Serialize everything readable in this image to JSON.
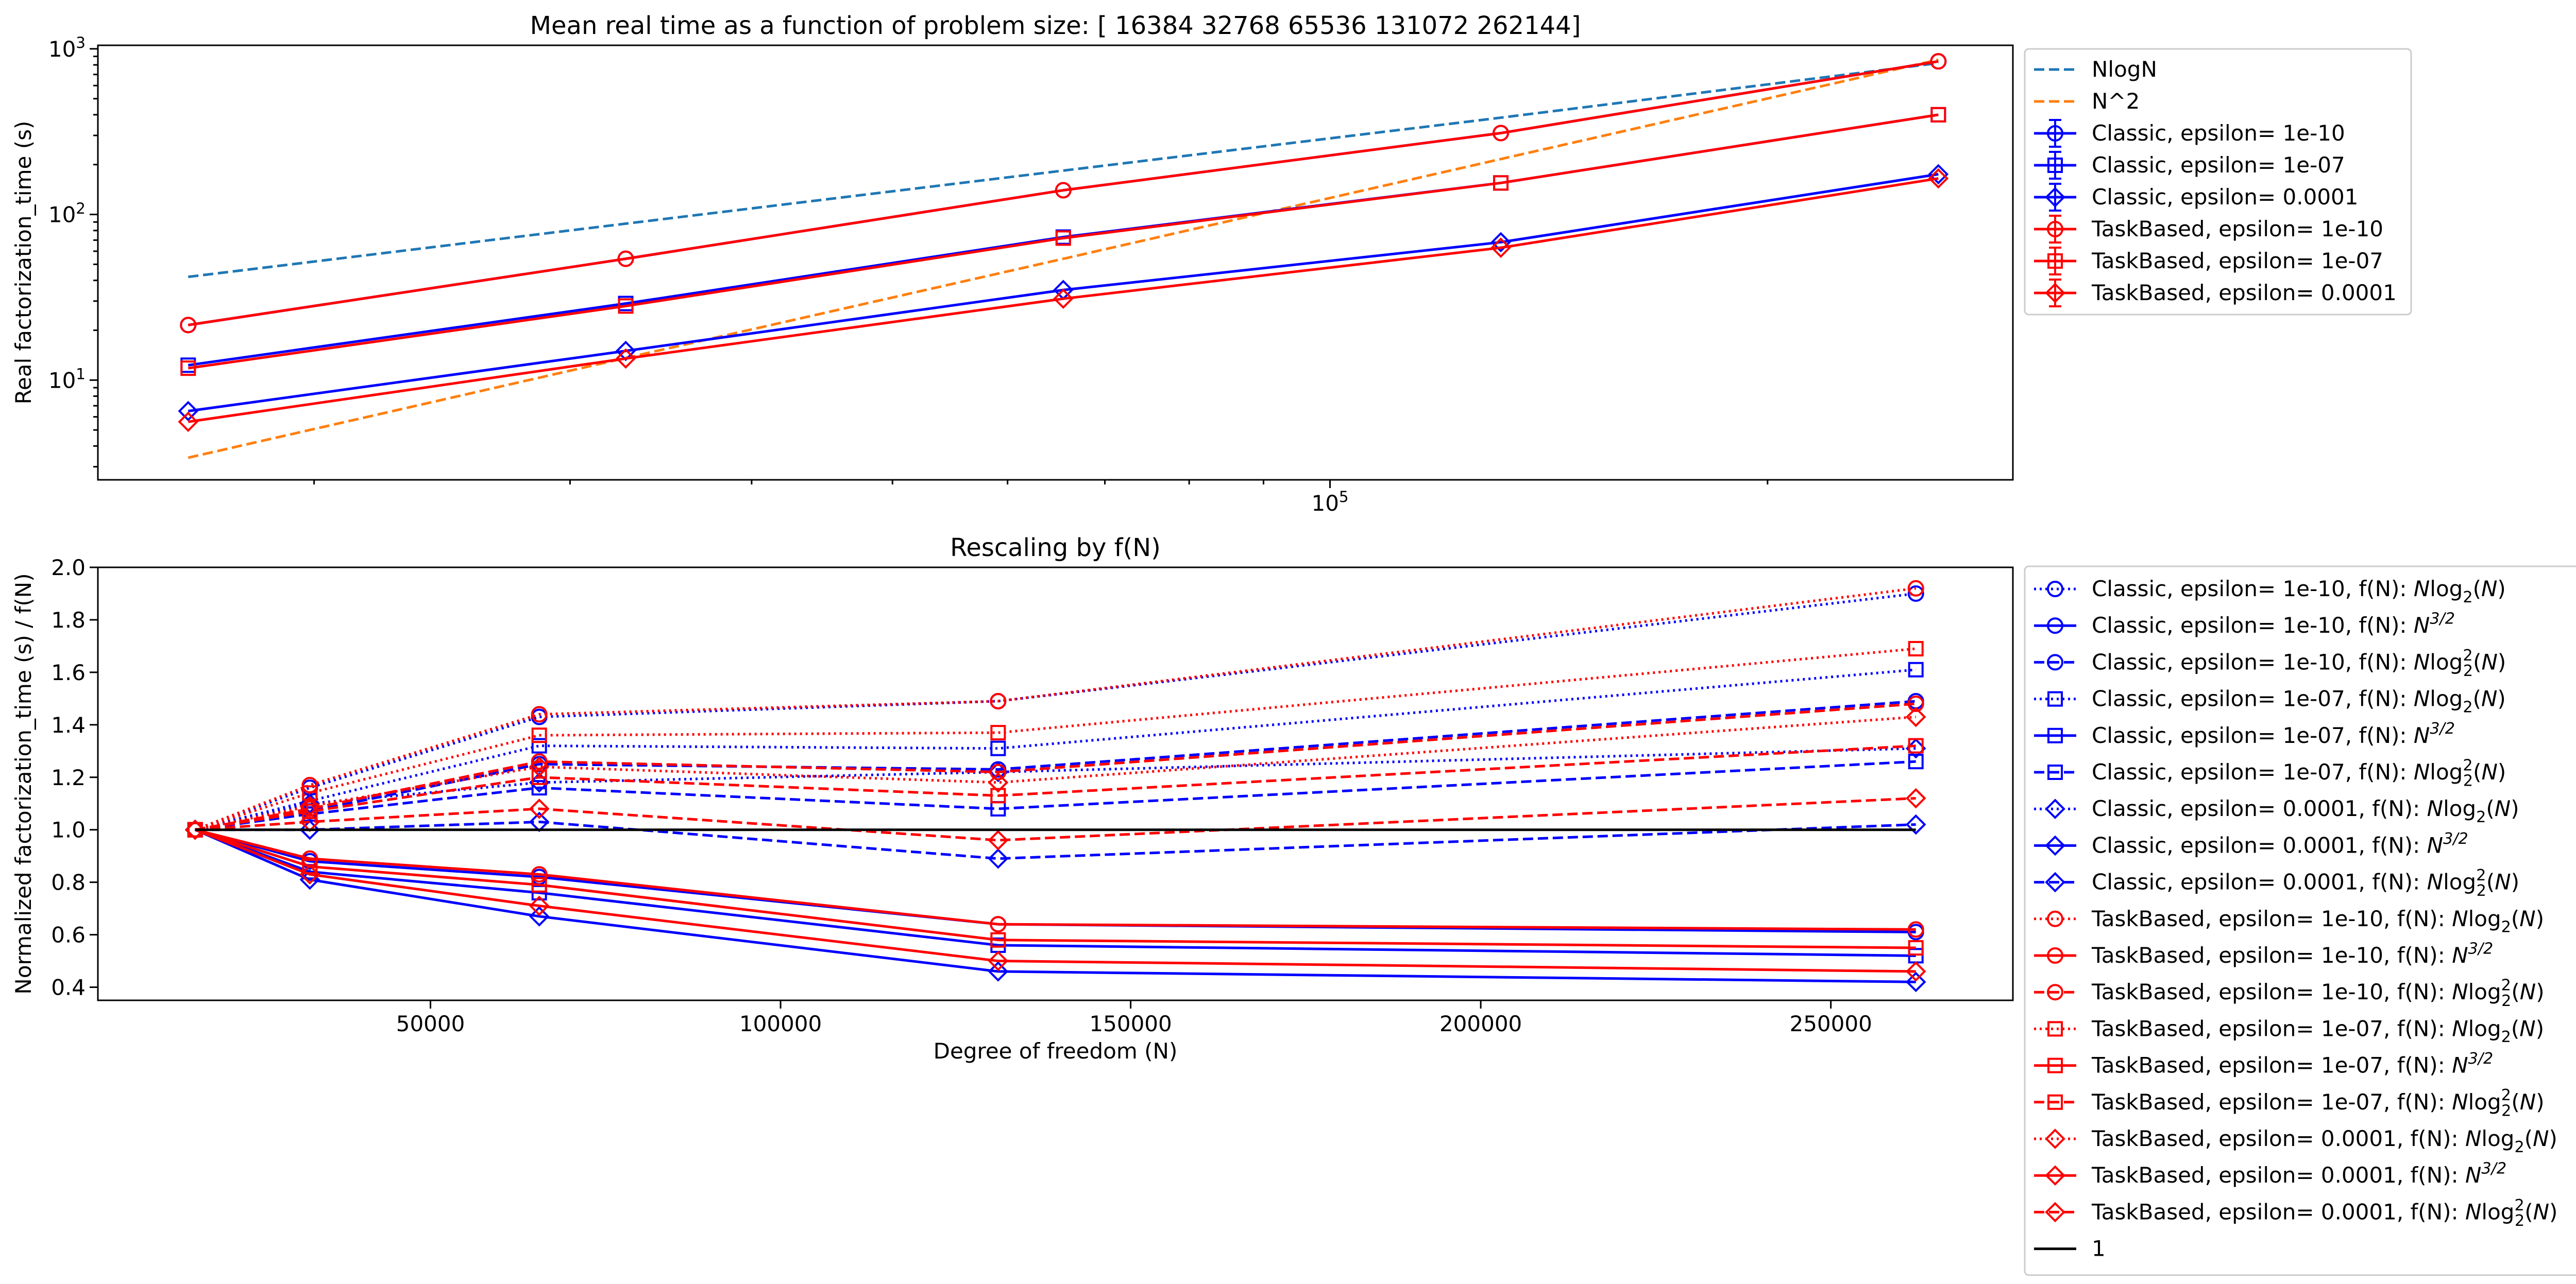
{
  "chart_data": [
    {
      "type": "line",
      "title": "Mean real time as a function of problem size: [ 16384  32768  65536 131072 262144]",
      "xlabel": "",
      "ylabel": "Real factorization_time (s)",
      "xscale": "log",
      "yscale": "log",
      "xlim": [
        14200,
        295000
      ],
      "ylim": [
        2.5,
        1050
      ],
      "x": [
        16384,
        32768,
        65536,
        131072,
        262144
      ],
      "x_tick_labels": [
        {
          "base": "10",
          "exp": "5",
          "value": 100000
        }
      ],
      "y_tick_labels": [
        {
          "base": "10",
          "exp": "1",
          "value": 10
        },
        {
          "base": "10",
          "exp": "2",
          "value": 100
        },
        {
          "base": "10",
          "exp": "3",
          "value": 1000
        }
      ],
      "legend_position": "outside-right",
      "series": [
        {
          "name": "NlogN",
          "color": "#1f77b4",
          "dash": "dashed",
          "marker": "none",
          "values": [
            42,
            88,
            184,
            384,
            820
          ]
        },
        {
          "name": "N^2",
          "color": "#ff7f0e",
          "dash": "dashed",
          "marker": "none",
          "values": [
            3.4,
            13.6,
            54,
            216,
            860
          ]
        },
        {
          "name": "Classic, epsilon= 1e-10",
          "color": "#0000ff",
          "dash": "solid",
          "marker": "circle",
          "values": [
            21.5,
            54,
            140,
            310,
            840
          ]
        },
        {
          "name": "Classic, epsilon= 1e-07",
          "color": "#0000ff",
          "dash": "solid",
          "marker": "square",
          "values": [
            12.3,
            29,
            73,
            155,
            400
          ]
        },
        {
          "name": "Classic, epsilon= 0.0001",
          "color": "#0000ff",
          "dash": "solid",
          "marker": "diamond",
          "values": [
            6.5,
            15,
            35,
            68,
            175
          ]
        },
        {
          "name": "TaskBased, epsilon= 1e-10",
          "color": "#ff0000",
          "dash": "solid",
          "marker": "circle",
          "values": [
            21.5,
            54,
            140,
            310,
            840
          ]
        },
        {
          "name": "TaskBased, epsilon= 1e-07",
          "color": "#ff0000",
          "dash": "solid",
          "marker": "square",
          "values": [
            11.8,
            28,
            72,
            155,
            400
          ]
        },
        {
          "name": "TaskBased, epsilon= 0.0001",
          "color": "#ff0000",
          "dash": "solid",
          "marker": "diamond",
          "values": [
            5.6,
            13.5,
            31,
            63,
            165
          ]
        }
      ]
    },
    {
      "type": "line",
      "title": "Rescaling by f(N)",
      "xlabel": "Degree of freedom (N)",
      "ylabel": "Normalized factorization_time (s) / f(N)",
      "xscale": "linear",
      "yscale": "linear",
      "xlim": [
        2500,
        276000
      ],
      "ylim": [
        0.35,
        2.0
      ],
      "x": [
        16384,
        32768,
        65536,
        131072,
        262144
      ],
      "x_ticks": [
        50000,
        100000,
        150000,
        200000,
        250000
      ],
      "x_tick_labels": [
        "50000",
        "100000",
        "150000",
        "200000",
        "250000"
      ],
      "y_ticks": [
        0.4,
        0.6,
        0.8,
        1.0,
        1.2,
        1.4,
        1.6,
        1.8,
        2.0
      ],
      "y_tick_labels": [
        "0.4",
        "0.6",
        "0.8",
        "1.0",
        "1.2",
        "1.4",
        "1.6",
        "1.8",
        "2.0"
      ],
      "legend_position": "outside-right",
      "series": [
        {
          "name": "Classic, epsilon= 1e-10, f(N): ",
          "math": "nlog",
          "color": "#0000ff",
          "dash": "dotted",
          "marker": "circle",
          "values": [
            1.0,
            1.16,
            1.43,
            1.49,
            1.9
          ]
        },
        {
          "name": "Classic, epsilon= 1e-10, f(N): ",
          "math": "n32",
          "color": "#0000ff",
          "dash": "solid",
          "marker": "circle",
          "values": [
            1.0,
            0.88,
            0.82,
            0.64,
            0.61
          ]
        },
        {
          "name": "Classic, epsilon= 1e-10, f(N): ",
          "math": "nlog2",
          "color": "#0000ff",
          "dash": "dashed",
          "marker": "circle",
          "values": [
            1.0,
            1.07,
            1.25,
            1.23,
            1.49
          ]
        },
        {
          "name": "Classic, epsilon= 1e-07, f(N): ",
          "math": "nlog",
          "color": "#0000ff",
          "dash": "dotted",
          "marker": "square",
          "values": [
            1.0,
            1.11,
            1.32,
            1.31,
            1.61
          ]
        },
        {
          "name": "Classic, epsilon= 1e-07, f(N): ",
          "math": "n32",
          "color": "#0000ff",
          "dash": "solid",
          "marker": "square",
          "values": [
            1.0,
            0.84,
            0.76,
            0.56,
            0.52
          ]
        },
        {
          "name": "Classic, epsilon= 1e-07, f(N): ",
          "math": "nlog2",
          "color": "#0000ff",
          "dash": "dashed",
          "marker": "square",
          "values": [
            1.0,
            1.06,
            1.16,
            1.08,
            1.26
          ]
        },
        {
          "name": "Classic, epsilon= 0.0001, f(N): ",
          "math": "nlog",
          "color": "#0000ff",
          "dash": "dotted",
          "marker": "diamond",
          "values": [
            1.0,
            1.1,
            1.18,
            1.22,
            1.31
          ]
        },
        {
          "name": "Classic, epsilon= 0.0001, f(N): ",
          "math": "n32",
          "color": "#0000ff",
          "dash": "solid",
          "marker": "diamond",
          "values": [
            1.0,
            0.81,
            0.67,
            0.46,
            0.42
          ]
        },
        {
          "name": "Classic, epsilon= 0.0001, f(N): ",
          "math": "nlog2",
          "color": "#0000ff",
          "dash": "dashed",
          "marker": "diamond",
          "values": [
            1.0,
            1.0,
            1.03,
            0.89,
            1.02
          ]
        },
        {
          "name": "TaskBased, epsilon= 1e-10, f(N): ",
          "math": "nlog",
          "color": "#ff0000",
          "dash": "dotted",
          "marker": "circle",
          "values": [
            1.0,
            1.17,
            1.44,
            1.49,
            1.92
          ]
        },
        {
          "name": "TaskBased, epsilon= 1e-10, f(N): ",
          "math": "n32",
          "color": "#ff0000",
          "dash": "solid",
          "marker": "circle",
          "values": [
            1.0,
            0.89,
            0.83,
            0.64,
            0.62
          ]
        },
        {
          "name": "TaskBased, epsilon= 1e-10, f(N): ",
          "math": "nlog2",
          "color": "#ff0000",
          "dash": "dashed",
          "marker": "circle",
          "values": [
            1.0,
            1.08,
            1.26,
            1.22,
            1.48
          ]
        },
        {
          "name": "TaskBased, epsilon= 1e-07, f(N): ",
          "math": "nlog",
          "color": "#ff0000",
          "dash": "dotted",
          "marker": "square",
          "values": [
            1.0,
            1.14,
            1.36,
            1.37,
            1.69
          ]
        },
        {
          "name": "TaskBased, epsilon= 1e-07, f(N): ",
          "math": "n32",
          "color": "#ff0000",
          "dash": "solid",
          "marker": "square",
          "values": [
            1.0,
            0.86,
            0.79,
            0.58,
            0.55
          ]
        },
        {
          "name": "TaskBased, epsilon= 1e-07, f(N): ",
          "math": "nlog2",
          "color": "#ff0000",
          "dash": "dashed",
          "marker": "square",
          "values": [
            1.0,
            1.07,
            1.2,
            1.13,
            1.32
          ]
        },
        {
          "name": "TaskBased, epsilon= 0.0001, f(N): ",
          "math": "nlog",
          "color": "#ff0000",
          "dash": "dotted",
          "marker": "diamond",
          "values": [
            1.0,
            1.09,
            1.24,
            1.18,
            1.43
          ]
        },
        {
          "name": "TaskBased, epsilon= 0.0001, f(N): ",
          "math": "n32",
          "color": "#ff0000",
          "dash": "solid",
          "marker": "diamond",
          "values": [
            1.0,
            0.83,
            0.71,
            0.5,
            0.46
          ]
        },
        {
          "name": "TaskBased, epsilon= 0.0001, f(N): ",
          "math": "nlog2",
          "color": "#ff0000",
          "dash": "dashed",
          "marker": "diamond",
          "values": [
            1.0,
            1.03,
            1.08,
            0.96,
            1.12
          ]
        },
        {
          "name": "1",
          "color": "#000000",
          "dash": "solid",
          "marker": "none",
          "values": [
            1.0,
            1.0,
            1.0,
            1.0,
            1.0
          ]
        }
      ]
    }
  ]
}
